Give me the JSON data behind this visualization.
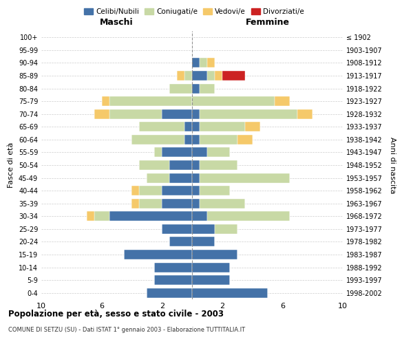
{
  "age_groups": [
    "0-4",
    "5-9",
    "10-14",
    "15-19",
    "20-24",
    "25-29",
    "30-34",
    "35-39",
    "40-44",
    "45-49",
    "50-54",
    "55-59",
    "60-64",
    "65-69",
    "70-74",
    "75-79",
    "80-84",
    "85-89",
    "90-94",
    "95-99",
    "100+"
  ],
  "birth_years": [
    "1998-2002",
    "1993-1997",
    "1988-1992",
    "1983-1987",
    "1978-1982",
    "1973-1977",
    "1968-1972",
    "1963-1967",
    "1958-1962",
    "1953-1957",
    "1948-1952",
    "1943-1947",
    "1938-1942",
    "1933-1937",
    "1928-1932",
    "1923-1927",
    "1918-1922",
    "1913-1917",
    "1908-1912",
    "1903-1907",
    "≤ 1902"
  ],
  "males": {
    "celibi": [
      3.0,
      2.5,
      2.5,
      4.5,
      1.5,
      2.0,
      5.5,
      2.0,
      2.0,
      1.5,
      1.5,
      2.0,
      0.5,
      0.5,
      2.0,
      0,
      0,
      0,
      0,
      0,
      0
    ],
    "coniugati": [
      0,
      0,
      0,
      0,
      0,
      0,
      1.0,
      1.5,
      1.5,
      1.5,
      2.0,
      0.5,
      3.5,
      3.0,
      3.5,
      5.5,
      1.5,
      0.5,
      0,
      0,
      0
    ],
    "vedovi": [
      0,
      0,
      0,
      0,
      0,
      0,
      0.5,
      0.5,
      0.5,
      0,
      0,
      0,
      0,
      0,
      1.0,
      0.5,
      0,
      0.5,
      0,
      0,
      0
    ],
    "divorziati": [
      0,
      0,
      0,
      0,
      0,
      0,
      0,
      0,
      0,
      0,
      0,
      0,
      0,
      0,
      0,
      0,
      0,
      0,
      0,
      0,
      0
    ]
  },
  "females": {
    "nubili": [
      5.0,
      2.5,
      2.5,
      3.0,
      1.5,
      1.5,
      1.0,
      0.5,
      0.5,
      0.5,
      0.5,
      1.0,
      0.5,
      0.5,
      0.5,
      0,
      0.5,
      1.0,
      0.5,
      0,
      0
    ],
    "coniugate": [
      0,
      0,
      0,
      0,
      0,
      1.5,
      5.5,
      3.0,
      2.0,
      6.0,
      2.5,
      1.5,
      2.5,
      3.0,
      6.5,
      5.5,
      1.0,
      0.5,
      0.5,
      0,
      0
    ],
    "vedove": [
      0,
      0,
      0,
      0,
      0,
      0,
      0,
      0,
      0,
      0,
      0,
      0,
      1.0,
      1.0,
      1.0,
      1.0,
      0,
      0.5,
      0.5,
      0,
      0
    ],
    "divorziate": [
      0,
      0,
      0,
      0,
      0,
      0,
      0,
      0,
      0,
      0,
      0,
      0,
      0,
      0,
      0,
      0,
      0,
      1.5,
      0,
      0,
      0
    ]
  },
  "color_celibi": "#4472a8",
  "color_coniugati": "#c8d9a5",
  "color_vedovi": "#f5c96a",
  "color_divorziati": "#cc2222",
  "title_main": "Popolazione per età, sesso e stato civile - 2003",
  "title_sub": "COMUNE DI SETZU (SU) - Dati ISTAT 1° gennaio 2003 - Elaborazione TUTTITALIA.IT",
  "xlabel_left": "Maschi",
  "xlabel_right": "Femmine",
  "ylabel_left": "Fasce di età",
  "ylabel_right": "Anni di nascita",
  "xlim": 10,
  "bg_color": "#ffffff",
  "grid_color": "#cccccc"
}
